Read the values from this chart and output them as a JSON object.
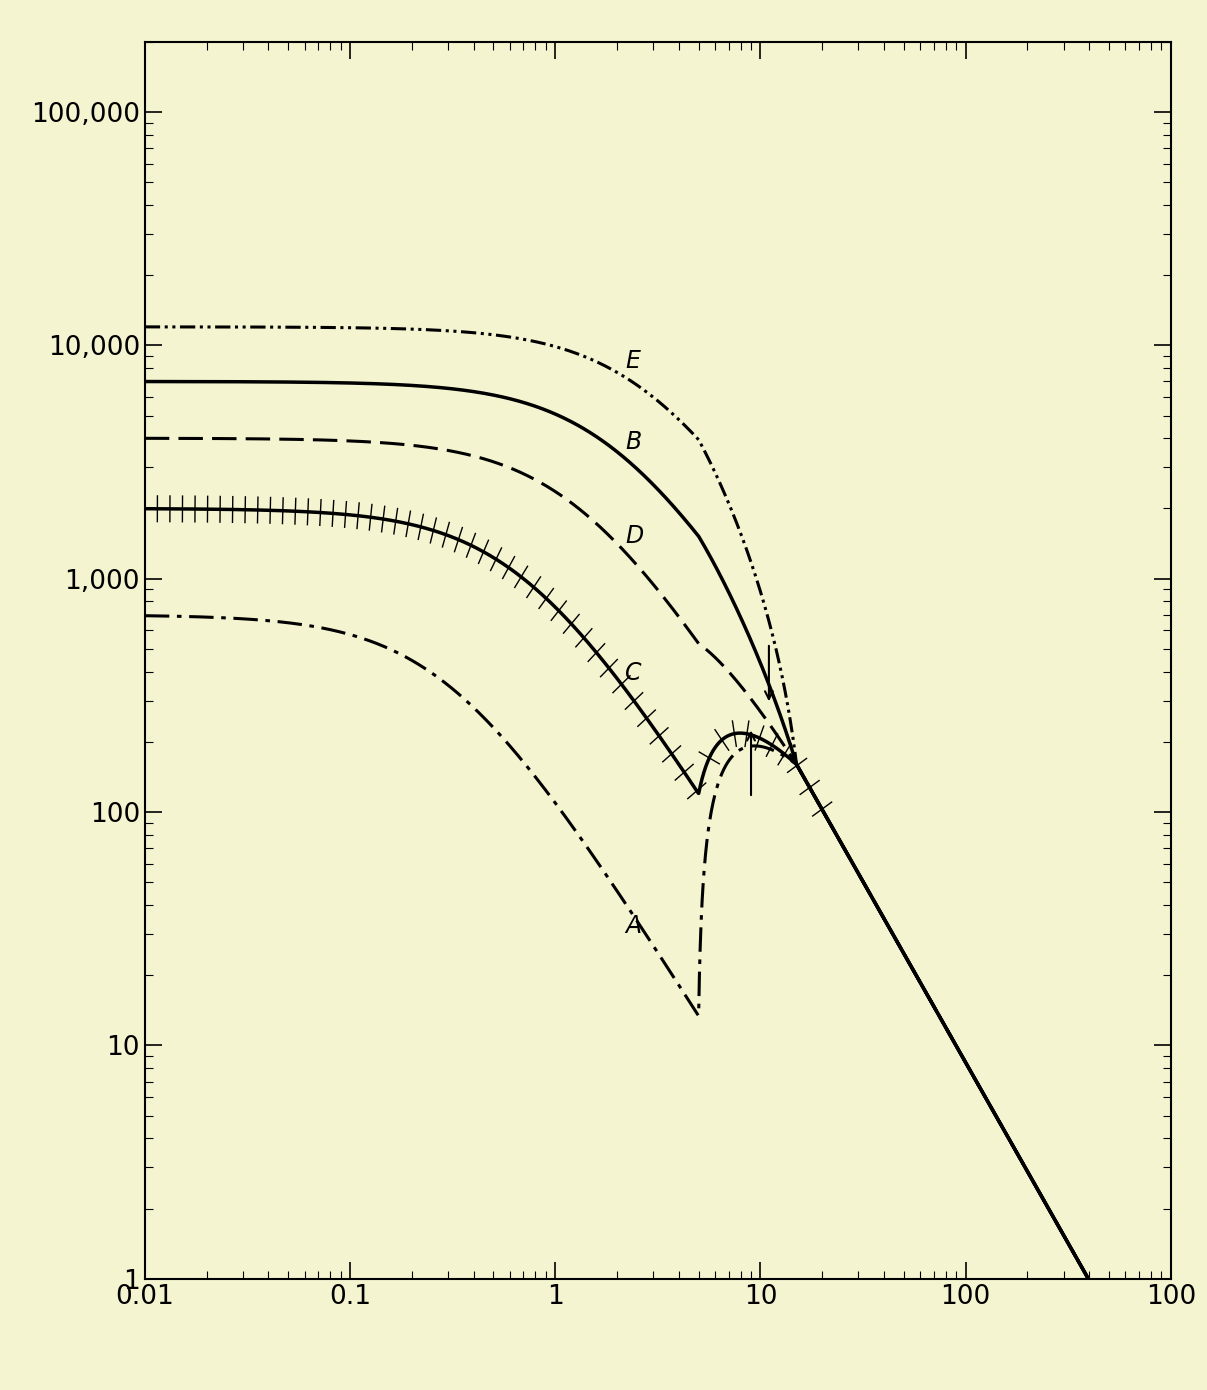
{
  "background_color": "#f5f4d0",
  "xlim": [
    0.01,
    1000
  ],
  "ylim": [
    1,
    200000
  ],
  "curve_E": {
    "plateau": 12000,
    "knee": 3.0,
    "slope": 1.4,
    "style": "dashdotdot",
    "lw": 2.2
  },
  "curve_B": {
    "plateau": 7000,
    "knee": 2.0,
    "slope": 1.4,
    "style": "solid",
    "lw": 2.5
  },
  "curve_D": {
    "plateau": 4000,
    "knee": 1.3,
    "slope": 1.4,
    "style": "dashed",
    "lw": 2.2
  },
  "curve_C": {
    "plateau": 2000,
    "knee": 0.7,
    "slope": 1.4,
    "style": "ticked",
    "lw": 2.5
  },
  "curve_A": {
    "plateau": 700,
    "knee": 0.3,
    "slope": 1.4,
    "style": "dashdot",
    "lw": 2.2
  },
  "convergence_x": 10,
  "convergence_y": 300,
  "high_x_slope": 1.55,
  "label_fontsize": 17,
  "tick_fontsize": 19
}
